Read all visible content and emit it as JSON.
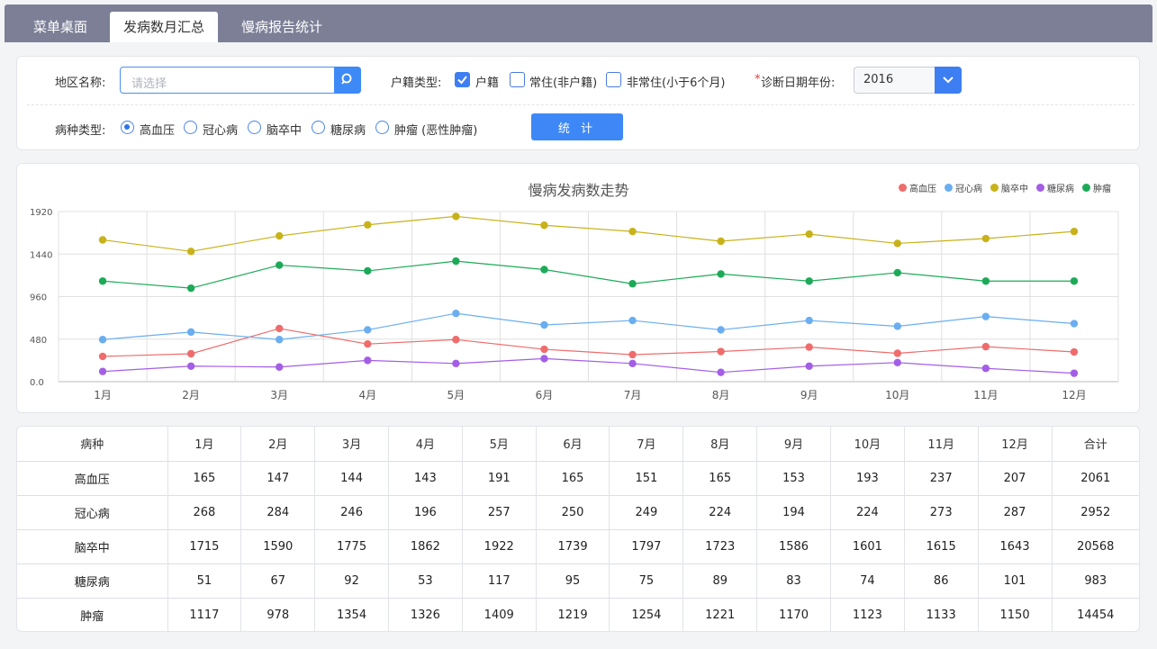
{
  "tabs": [
    "菜单桌面",
    "发病数月汇总",
    "慢病报告统计"
  ],
  "filters": {
    "area_label": "地区名称:",
    "area_placeholder": "请选择",
    "household_label": "户籍类型:",
    "household_options": [
      {
        "label": "户籍",
        "checked": true
      },
      {
        "label": "常住(非户籍)",
        "checked": false
      },
      {
        "label": "非常住(小于6个月)",
        "checked": false
      }
    ],
    "year_required_mark": "*",
    "year_label": "诊断日期年份:",
    "year_value": "2016",
    "disease_label": "病种类型:",
    "disease_options": [
      {
        "label": "高血压",
        "selected": true
      },
      {
        "label": "冠心病",
        "selected": false
      },
      {
        "label": "脑卒中",
        "selected": false
      },
      {
        "label": "糖尿病",
        "selected": false
      },
      {
        "label": "肿瘤 (恶性肿瘤)",
        "selected": false
      }
    ],
    "stat_button": "统 计"
  },
  "chart_data": {
    "type": "line",
    "title": "慢病发病数走势",
    "categories": [
      "1月",
      "2月",
      "3月",
      "4月",
      "5月",
      "6月",
      "7月",
      "8月",
      "9月",
      "10月",
      "11月",
      "12月"
    ],
    "y_ticks": [
      "0.0",
      "480",
      "960",
      "1440",
      "1920"
    ],
    "ylim": [
      0,
      1920
    ],
    "grid": true,
    "legend_position": "top-right",
    "series": [
      {
        "name": "高血压",
        "color": "#ef6c6c",
        "values": [
          285,
          315,
          600,
          425,
          475,
          365,
          305,
          340,
          390,
          320,
          395,
          335
        ]
      },
      {
        "name": "冠心病",
        "color": "#6aaef0",
        "values": [
          475,
          560,
          475,
          585,
          770,
          640,
          690,
          585,
          690,
          625,
          735,
          655
        ]
      },
      {
        "name": "脑卒中",
        "color": "#c8b21a",
        "values": [
          1600,
          1470,
          1645,
          1770,
          1865,
          1765,
          1695,
          1585,
          1665,
          1560,
          1615,
          1695
        ]
      },
      {
        "name": "糖尿病",
        "color": "#a35ee6",
        "values": [
          115,
          175,
          165,
          240,
          205,
          260,
          205,
          105,
          175,
          215,
          150,
          95
        ]
      },
      {
        "name": "肿瘤",
        "color": "#1daa58",
        "values": [
          1135,
          1055,
          1315,
          1250,
          1360,
          1265,
          1105,
          1215,
          1135,
          1230,
          1135,
          1135
        ]
      }
    ]
  },
  "table": {
    "headers": [
      "病种",
      "1月",
      "2月",
      "3月",
      "4月",
      "5月",
      "6月",
      "7月",
      "8月",
      "9月",
      "10月",
      "11月",
      "12月",
      "合计"
    ],
    "rows": [
      [
        "高血压",
        "165",
        "147",
        "144",
        "143",
        "191",
        "165",
        "151",
        "165",
        "153",
        "193",
        "237",
        "207",
        "2061"
      ],
      [
        "冠心病",
        "268",
        "284",
        "246",
        "196",
        "257",
        "250",
        "249",
        "224",
        "194",
        "224",
        "273",
        "287",
        "2952"
      ],
      [
        "脑卒中",
        "1715",
        "1590",
        "1775",
        "1862",
        "1922",
        "1739",
        "1797",
        "1723",
        "1586",
        "1601",
        "1615",
        "1643",
        "20568"
      ],
      [
        "糖尿病",
        "51",
        "67",
        "92",
        "53",
        "117",
        "95",
        "75",
        "89",
        "83",
        "74",
        "86",
        "101",
        "983"
      ],
      [
        "肿瘤",
        "1117",
        "978",
        "1354",
        "1326",
        "1409",
        "1219",
        "1254",
        "1221",
        "1170",
        "1123",
        "1133",
        "1150",
        "14454"
      ]
    ]
  }
}
